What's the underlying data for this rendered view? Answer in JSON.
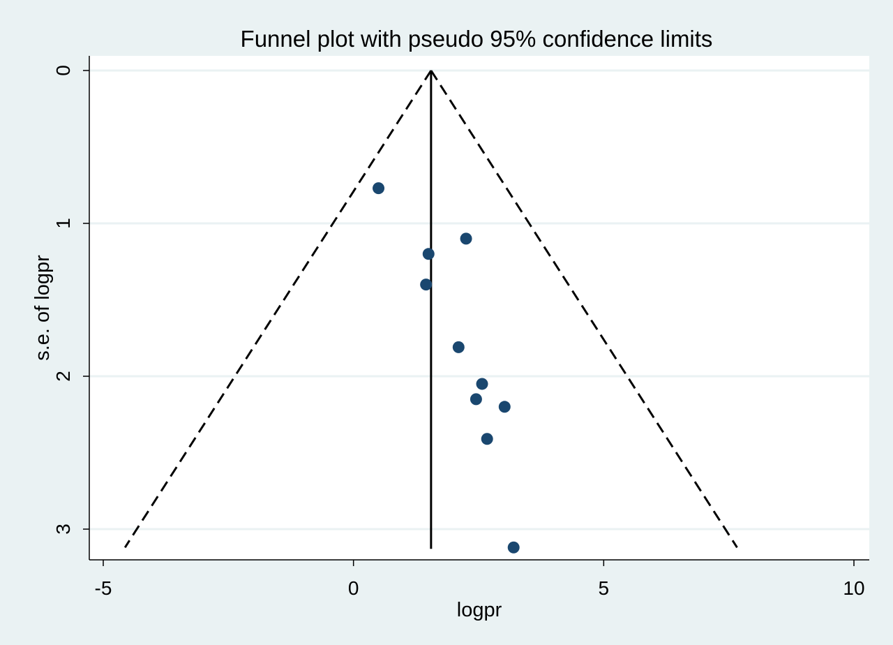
{
  "chart_data": {
    "type": "scatter",
    "title": "Funnel plot with pseudo 95% confidence limits",
    "xlabel": "logpr",
    "ylabel": "s.e. of logpr",
    "xlim": [
      -5.3,
      10.3
    ],
    "ylim": [
      3.2,
      0
    ],
    "y_reversed": true,
    "xticks": [
      -5,
      0,
      5,
      10
    ],
    "xtick_labels": [
      "-5",
      "0",
      "5",
      "10"
    ],
    "yticks": [
      0,
      1,
      2,
      3
    ],
    "ytick_labels": [
      "0",
      "1",
      "2",
      "3"
    ],
    "grid": "horizontal",
    "pooled_estimate": 1.55,
    "funnel_max_se": 3.12,
    "points": [
      {
        "x": 0.5,
        "y": 0.77
      },
      {
        "x": 2.25,
        "y": 1.1
      },
      {
        "x": 1.5,
        "y": 1.2
      },
      {
        "x": 1.45,
        "y": 1.4
      },
      {
        "x": 2.1,
        "y": 1.81
      },
      {
        "x": 2.57,
        "y": 2.05
      },
      {
        "x": 2.45,
        "y": 2.15
      },
      {
        "x": 3.02,
        "y": 2.2
      },
      {
        "x": 2.67,
        "y": 2.41
      },
      {
        "x": 3.2,
        "y": 3.12
      }
    ],
    "colors": {
      "background": "#eaf2f3",
      "plot_area": "#ffffff",
      "grid": "#eaf2f3",
      "marker": "#1a476f",
      "lines": "#000000"
    }
  }
}
